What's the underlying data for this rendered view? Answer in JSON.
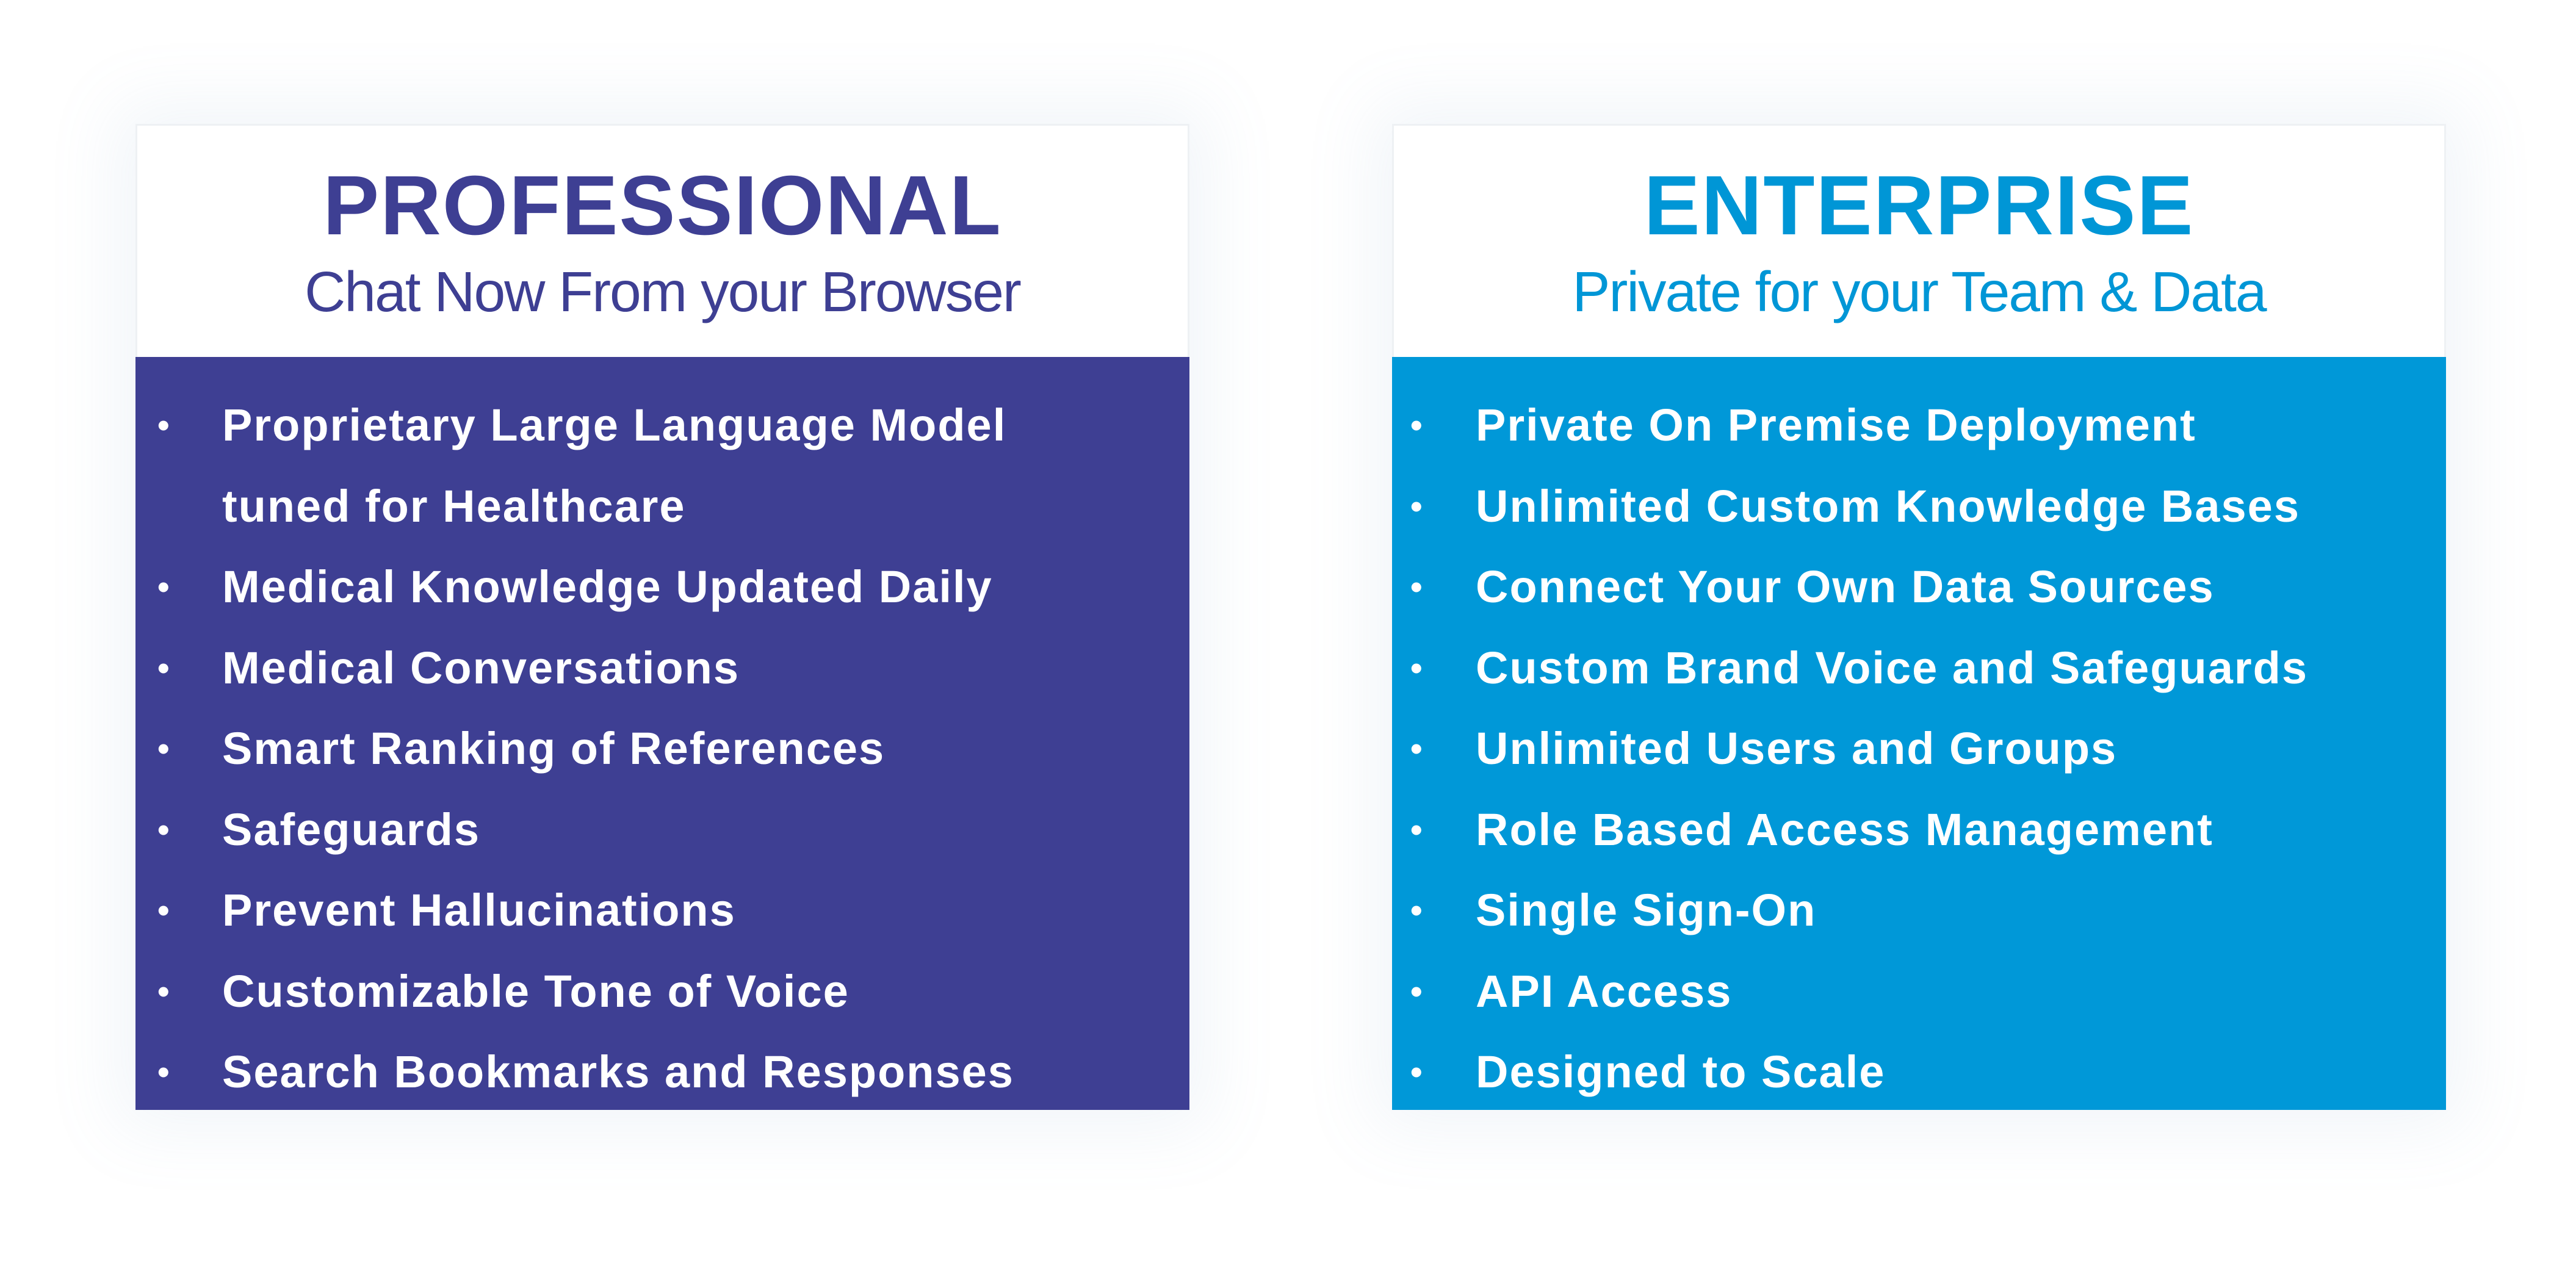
{
  "plans": {
    "professional": {
      "title": "PROFESSIONAL",
      "subtitle": "Chat Now From your Browser",
      "color": "#3e3f93",
      "features": [
        "Proprietary Large Language Model tuned for Healthcare",
        "Medical Knowledge Updated Daily",
        "Medical Conversations",
        "Smart Ranking of References",
        "Safeguards",
        "Prevent Hallucinations",
        "Customizable Tone of Voice",
        "Search Bookmarks and Responses"
      ]
    },
    "enterprise": {
      "title": "ENTERPRISE",
      "subtitle": "Private for your Team & Data",
      "color": "#0098d8",
      "features": [
        "Private On Premise Deployment",
        "Unlimited Custom Knowledge Bases",
        "Connect Your Own Data Sources",
        "Custom Brand Voice and Safeguards",
        "Unlimited Users and Groups",
        "Role Based Access Management",
        "Single Sign-On",
        "API Access",
        "Designed to Scale"
      ]
    }
  },
  "bullet_glyph": "•"
}
